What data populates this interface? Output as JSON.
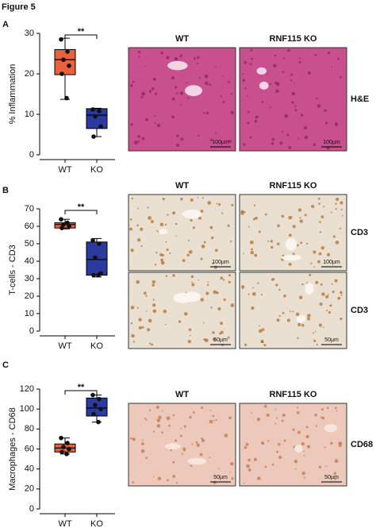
{
  "figure_label": "Figure 5",
  "chart_data": [
    {
      "type": "box",
      "ylabel": "% Inflammation",
      "categories": [
        "WT",
        "KO"
      ],
      "colors": [
        "#e8603c",
        "#2b3a9e"
      ],
      "ylim": [
        0,
        30
      ],
      "yticks": [
        0,
        10,
        20,
        30
      ],
      "significance": "**",
      "stats": [
        [
          13.7,
          19.8,
          23.5,
          26,
          28.8
        ],
        [
          4.5,
          6.5,
          9.8,
          11.4,
          11.5
        ]
      ],
      "points": [
        [
          28.5,
          25.5,
          23.5,
          22,
          20,
          14
        ],
        [
          11.2,
          10.8,
          9.5,
          7,
          4.5
        ]
      ]
    },
    {
      "type": "box",
      "ylabel": "T-cells - CD3",
      "categories": [
        "WT",
        "KO"
      ],
      "colors": [
        "#e8603c",
        "#2b3a9e"
      ],
      "ylim": [
        0,
        70
      ],
      "yticks": [
        0,
        10,
        20,
        30,
        40,
        50,
        60,
        70
      ],
      "significance": "**",
      "stats": [
        [
          58.5,
          59,
          61,
          62,
          64
        ],
        [
          31,
          32,
          41,
          51,
          53
        ]
      ],
      "points": [
        [
          64,
          62,
          61,
          60,
          59
        ],
        [
          52,
          50,
          42,
          33,
          32,
          32
        ]
      ]
    },
    {
      "type": "box",
      "ylabel": "Macrophages - CD68",
      "categories": [
        "WT",
        "KO"
      ],
      "colors": [
        "#e8603c",
        "#2b3a9e"
      ],
      "ylim": [
        0,
        120
      ],
      "yticks": [
        0,
        20,
        40,
        60,
        80,
        100,
        120
      ],
      "significance": "**",
      "stats": [
        [
          55,
          57,
          61,
          65,
          71
        ],
        [
          87,
          93,
          101,
          111,
          114
        ]
      ],
      "points": [
        [
          71,
          66,
          62,
          60,
          57,
          55
        ],
        [
          114,
          110,
          104,
          100,
          95,
          87
        ]
      ]
    }
  ],
  "panels": [
    {
      "letter": "A",
      "columns": [
        "WT",
        "RNF115 KO"
      ],
      "rows": [
        {
          "stain": "H&E",
          "scale_bars": [
            "100µm",
            "100µm"
          ]
        }
      ]
    },
    {
      "letter": "B",
      "columns": [
        "WT",
        "RNF115 KO"
      ],
      "rows": [
        {
          "stain": "CD3",
          "scale_bars": [
            "100µm",
            "100µm"
          ]
        },
        {
          "stain": "CD3",
          "scale_bars": [
            "50µm",
            "50µm"
          ]
        }
      ]
    },
    {
      "letter": "C",
      "columns": [
        "WT",
        "RNF115 KO"
      ],
      "rows": [
        {
          "stain": "CD68",
          "scale_bars": [
            "50µm",
            "50µm"
          ]
        }
      ]
    }
  ]
}
